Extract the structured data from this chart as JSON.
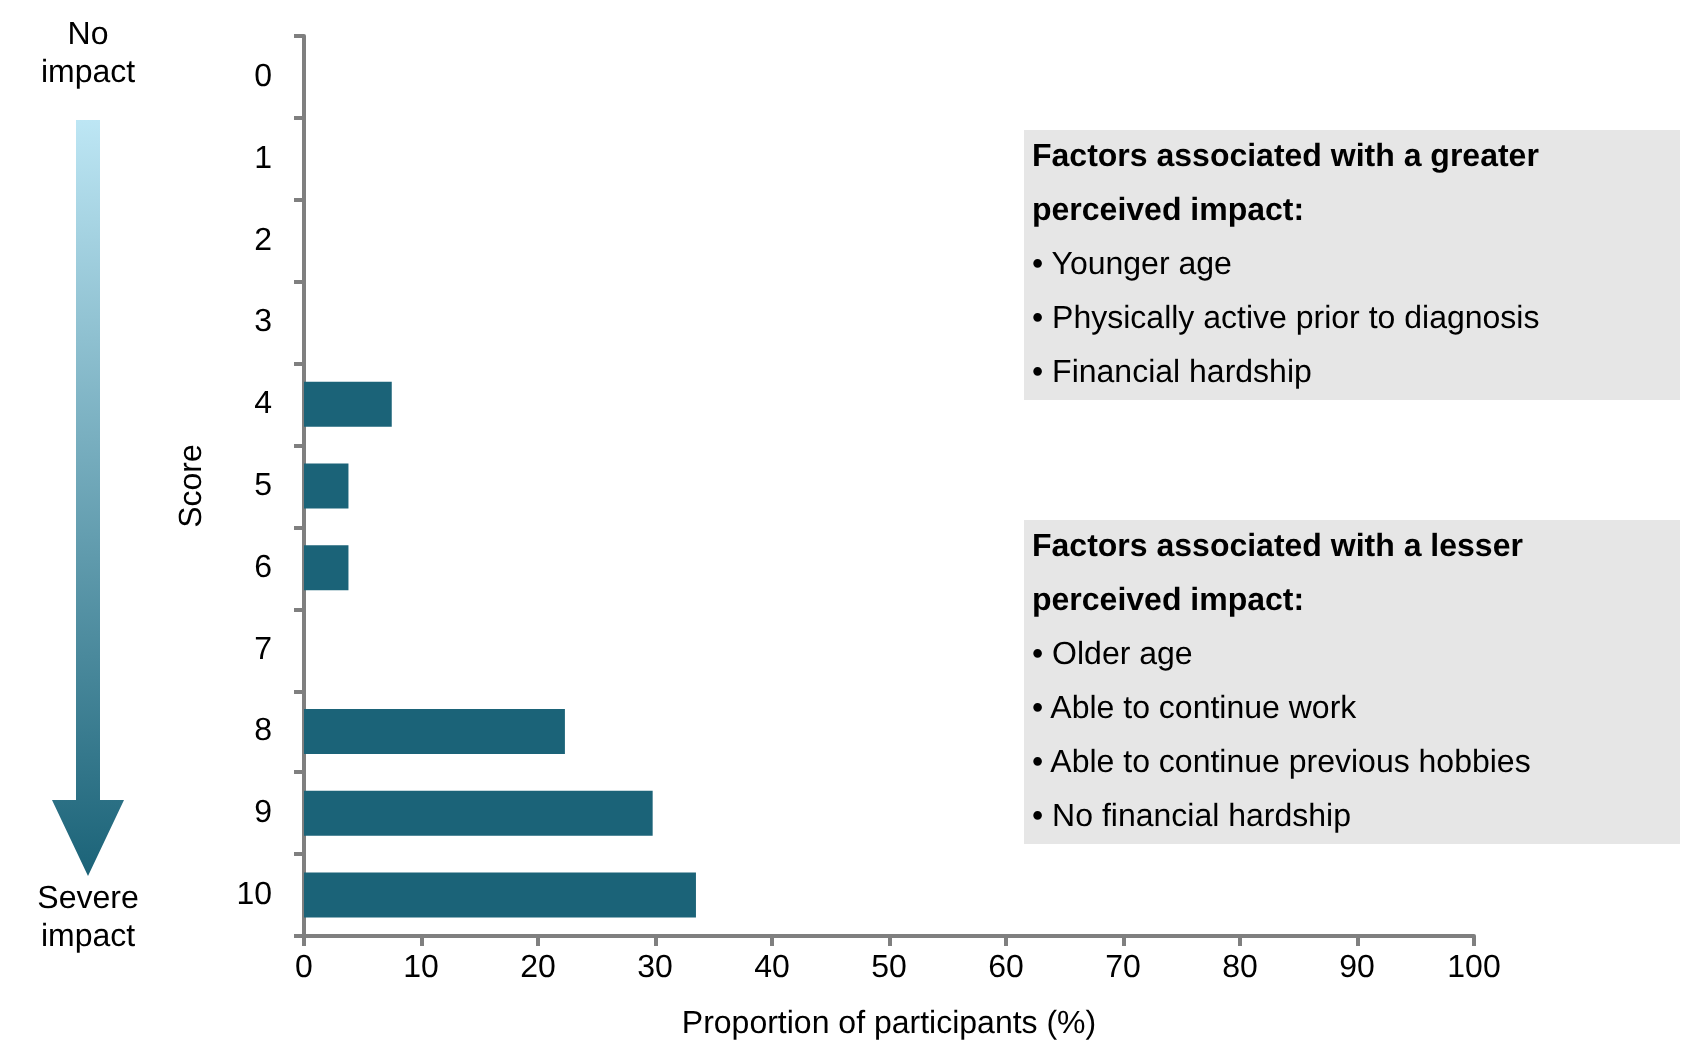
{
  "chart_data": {
    "type": "bar",
    "orientation": "horizontal",
    "categories": [
      "0",
      "1",
      "2",
      "3",
      "4",
      "5",
      "6",
      "7",
      "8",
      "9",
      "10"
    ],
    "values": [
      null,
      null,
      null,
      null,
      7.5,
      3.8,
      3.8,
      null,
      22.3,
      29.8,
      33.5
    ],
    "color": "#1b6378",
    "xlabel": "Proportion of participants (%)",
    "ylabel": "Score",
    "xlim": [
      0,
      100
    ],
    "xticks": [
      0,
      10,
      20,
      30,
      40,
      50,
      60,
      70,
      80,
      90,
      100
    ],
    "grid": false,
    "annotations": [
      "No impact",
      "Severe impact",
      "Factors associated with a greater perceived impact:\n•  Younger age\n•  Physically active prior to diagnosis\n•  Financial hardship",
      "Factors associated with a lesser perceived impact:\n•  Older age\n•  Able to continue work\n•  Able to continue previous hobbies\n•  No financial hardship"
    ]
  }
}
